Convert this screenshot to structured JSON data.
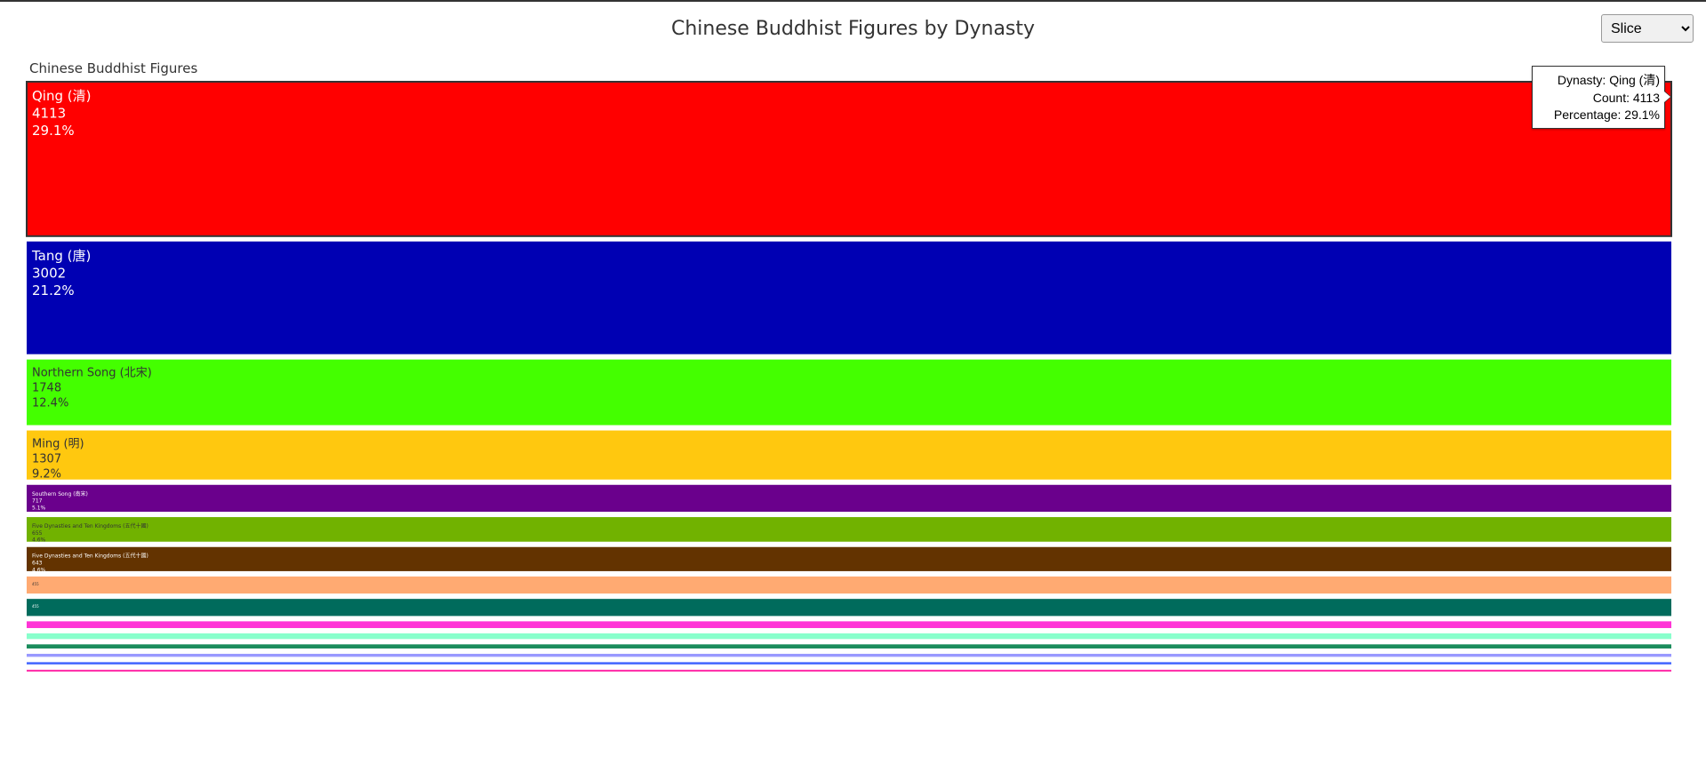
{
  "page": {
    "title": "Chinese Buddhist Figures by Dynasty",
    "layout_select": {
      "selected": "Slice",
      "options": [
        "Slice"
      ]
    }
  },
  "tooltip": {
    "line1_label": "Dynasty: ",
    "line1_value": "Qing (清)",
    "line2_label": "Count: ",
    "line2_value": "4113",
    "line3_label": "Percentage: ",
    "line3_value": "29.1%"
  },
  "chart_data": {
    "type": "treemap",
    "layout": "slice",
    "root_label": "Chinese Buddhist Figures",
    "highlighted": "Qing (清)",
    "items": [
      {
        "name": "Qing (清)",
        "value": 4113,
        "percent": "29.1%",
        "color": "#ff0000",
        "text_color": "#ffffff"
      },
      {
        "name": "Tang (唐)",
        "value": 3002,
        "percent": "21.2%",
        "color": "#0000b3",
        "text_color": "#ffffff"
      },
      {
        "name": "Northern Song (北宋)",
        "value": 1748,
        "percent": "12.4%",
        "color": "#44ff00",
        "text_color": "#333333"
      },
      {
        "name": "Ming (明)",
        "value": 1307,
        "percent": "9.2%",
        "color": "#ffc80f",
        "text_color": "#333333"
      },
      {
        "name": "Southern Song (南宋)",
        "value": 717,
        "percent": "5.1%",
        "color": "#6a008c",
        "text_color": "#ffffff"
      },
      {
        "name": "Five Dynasties and Ten Kingdoms (五代十國)",
        "value": 655,
        "percent": "4.6%",
        "color": "#71b200",
        "text_color": "#333333"
      },
      {
        "name": "Five Dynasties and Ten Kingdoms (五代十國)",
        "value": 643,
        "percent": "4.6%",
        "color": "#633300",
        "text_color": "#ffffff"
      },
      {
        "name": "",
        "value": 455,
        "percent": "",
        "color": "#ffaa72",
        "text_color": "#333333"
      },
      {
        "name": "",
        "value": 455,
        "percent": "",
        "color": "#006b5c",
        "text_color": "#ffffff"
      },
      {
        "name": "",
        "value": 180,
        "percent": "",
        "color": "#ff33d6",
        "text_color": "#333333"
      },
      {
        "name": "",
        "value": 150,
        "percent": "",
        "color": "#88ffcc",
        "text_color": "#333333"
      },
      {
        "name": "",
        "value": 110,
        "percent": "",
        "color": "#1a8c5c",
        "text_color": "#ffffff"
      },
      {
        "name": "",
        "value": 80,
        "percent": "",
        "color": "#9999ff",
        "text_color": "#333333"
      },
      {
        "name": "",
        "value": 60,
        "percent": "",
        "color": "#4466ff",
        "text_color": "#ffffff"
      },
      {
        "name": "",
        "value": 50,
        "percent": "",
        "color": "#ff33aa",
        "text_color": "#ffffff"
      }
    ]
  }
}
